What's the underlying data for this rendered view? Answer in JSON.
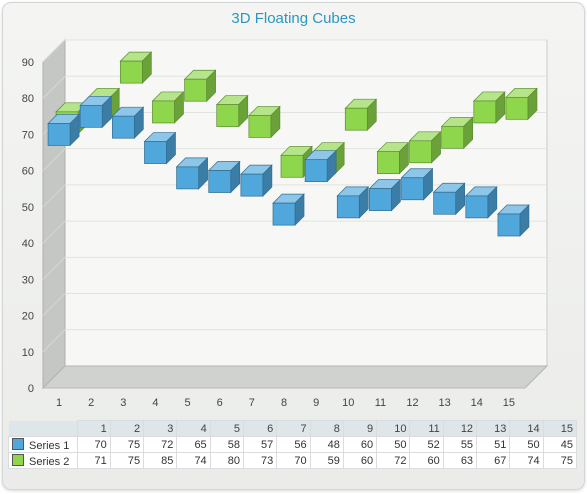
{
  "chart_data": {
    "type": "3d-floating-cube",
    "title": "3D Floating Cubes",
    "x_ticks": [
      "1",
      "2",
      "3",
      "4",
      "5",
      "6",
      "7",
      "8",
      "9",
      "10",
      "11",
      "12",
      "13",
      "14",
      "15"
    ],
    "ylim": [
      0,
      90
    ],
    "y_ticks": [
      "0",
      "10",
      "20",
      "30",
      "40",
      "50",
      "60",
      "70",
      "80",
      "90"
    ],
    "grid": true,
    "legend_placement": "data-table-bottom",
    "series": [
      {
        "name": "Series 1",
        "color": "#4fa7dc",
        "values": [
          70,
          75,
          72,
          65,
          58,
          57,
          56,
          48,
          60,
          50,
          52,
          55,
          51,
          50,
          45
        ]
      },
      {
        "name": "Series 2",
        "color": "#8ed64c",
        "values": [
          71,
          75,
          85,
          74,
          80,
          73,
          70,
          59,
          60,
          72,
          60,
          63,
          67,
          74,
          75
        ]
      }
    ],
    "table_header": [
      "1",
      "2",
      "3",
      "4",
      "5",
      "6",
      "7",
      "8",
      "9",
      "10",
      "11",
      "12",
      "13",
      "14",
      "15"
    ]
  }
}
